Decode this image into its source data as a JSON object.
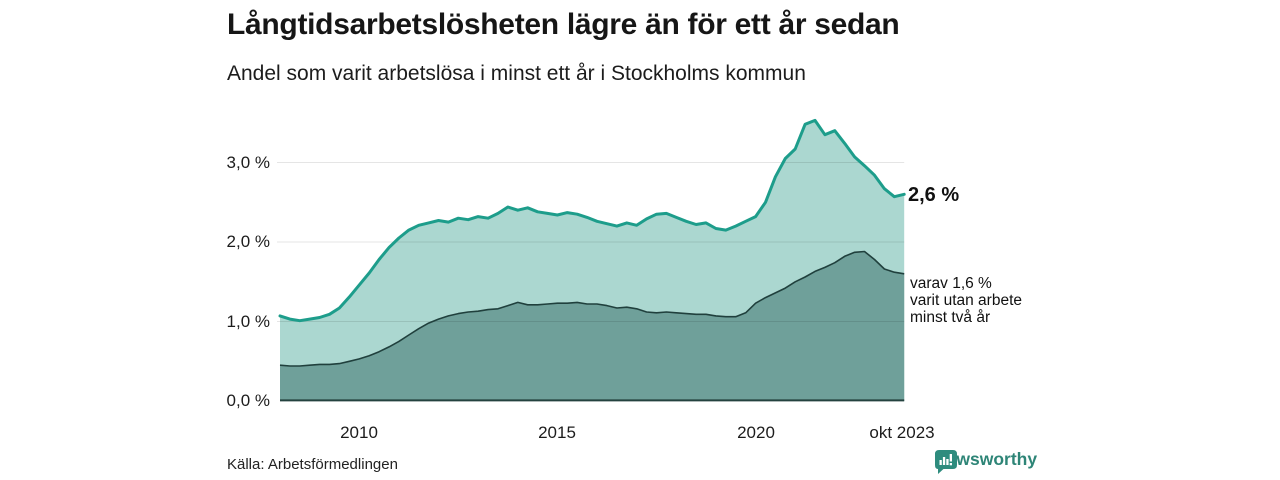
{
  "header": {
    "title": "Långtidsarbetslösheten lägre än för ett år sedan",
    "subtitle": "Andel som varit arbetslösa i minst ett år i Stockholms kommun"
  },
  "annotations": {
    "latest_total": "2,6 %",
    "note_line1": "varav 1,6 %",
    "note_line2": "varit utan arbete",
    "note_line3": "minst två år"
  },
  "footer": {
    "source": "Källa: Arbetsförmedlingen",
    "brand": "Newsworthy"
  },
  "colors": {
    "series1_line": "#1d9d8b",
    "series1_fill": "#abd7d0",
    "series2_line": "#20403d",
    "series2_fill": "#6fa09a",
    "grid": "#000000",
    "grid_opacity": "0.10",
    "baseline": "#24423f",
    "brand": "#2e8577"
  },
  "chart_data": {
    "type": "area",
    "title": "Långtidsarbetslösheten lägre än för ett år sedan",
    "subtitle": "Andel som varit arbetslösa i minst ett år i Stockholms kommun",
    "unit": "%",
    "grid": "horizontal",
    "ylim": [
      0,
      3.6
    ],
    "xlim": [
      2008.0,
      2023.75
    ],
    "x": [
      2008.0,
      2008.25,
      2008.5,
      2008.75,
      2009.0,
      2009.25,
      2009.5,
      2009.75,
      2010.0,
      2010.25,
      2010.5,
      2010.75,
      2011.0,
      2011.25,
      2011.5,
      2011.75,
      2012.0,
      2012.25,
      2012.5,
      2012.75,
      2013.0,
      2013.25,
      2013.5,
      2013.75,
      2014.0,
      2014.25,
      2014.5,
      2014.75,
      2015.0,
      2015.25,
      2015.5,
      2015.75,
      2016.0,
      2016.25,
      2016.5,
      2016.75,
      2017.0,
      2017.25,
      2017.5,
      2017.75,
      2018.0,
      2018.25,
      2018.5,
      2018.75,
      2019.0,
      2019.25,
      2019.5,
      2019.75,
      2020.0,
      2020.25,
      2020.5,
      2020.75,
      2021.0,
      2021.25,
      2021.5,
      2021.75,
      2022.0,
      2022.25,
      2022.5,
      2022.75,
      2023.0,
      2023.25,
      2023.5,
      2023.75
    ],
    "series": [
      {
        "name": "Andel arbetslösa minst ett år",
        "line_color": "#1d9d8b",
        "fill_color": "#abd7d0",
        "line_width": 3,
        "values": [
          1.07,
          1.03,
          1.01,
          1.03,
          1.05,
          1.09,
          1.17,
          1.31,
          1.46,
          1.61,
          1.78,
          1.93,
          2.05,
          2.15,
          2.21,
          2.24,
          2.27,
          2.25,
          2.3,
          2.28,
          2.32,
          2.3,
          2.36,
          2.44,
          2.4,
          2.43,
          2.38,
          2.36,
          2.34,
          2.37,
          2.35,
          2.31,
          2.26,
          2.23,
          2.2,
          2.24,
          2.21,
          2.29,
          2.35,
          2.36,
          2.31,
          2.26,
          2.22,
          2.24,
          2.17,
          2.15,
          2.2,
          2.26,
          2.32,
          2.5,
          2.82,
          3.05,
          3.17,
          3.48,
          3.53,
          3.35,
          3.4,
          3.24,
          3.07,
          2.96,
          2.84,
          2.67,
          2.57,
          2.6
        ]
      },
      {
        "name": "varav utan arbete minst två år",
        "line_color": "#20403d",
        "fill_color": "#6fa09a",
        "line_width": 1.6,
        "values": [
          0.45,
          0.44,
          0.44,
          0.45,
          0.46,
          0.46,
          0.47,
          0.5,
          0.53,
          0.57,
          0.62,
          0.68,
          0.75,
          0.83,
          0.91,
          0.98,
          1.03,
          1.07,
          1.1,
          1.12,
          1.13,
          1.15,
          1.16,
          1.2,
          1.24,
          1.21,
          1.21,
          1.22,
          1.23,
          1.23,
          1.24,
          1.22,
          1.22,
          1.2,
          1.17,
          1.18,
          1.16,
          1.12,
          1.11,
          1.12,
          1.11,
          1.1,
          1.09,
          1.09,
          1.07,
          1.06,
          1.06,
          1.11,
          1.23,
          1.3,
          1.36,
          1.42,
          1.5,
          1.56,
          1.63,
          1.68,
          1.74,
          1.82,
          1.87,
          1.88,
          1.78,
          1.66,
          1.62,
          1.6
        ]
      }
    ],
    "yticks": [
      {
        "value": 3.0,
        "label": "3,0 %"
      },
      {
        "value": 2.0,
        "label": "2,0 %"
      },
      {
        "value": 1.0,
        "label": "1,0 %"
      },
      {
        "value": 0.0,
        "label": "0,0 %"
      }
    ],
    "xticks": [
      {
        "value": 2010,
        "label": "2010"
      },
      {
        "value": 2015,
        "label": "2015"
      },
      {
        "value": 2020,
        "label": "2020"
      },
      {
        "value": 2023.75,
        "label": "okt 2023"
      }
    ],
    "latest": {
      "minst_ett_ar": 2.6,
      "minst_tva_ar": 1.6
    }
  }
}
